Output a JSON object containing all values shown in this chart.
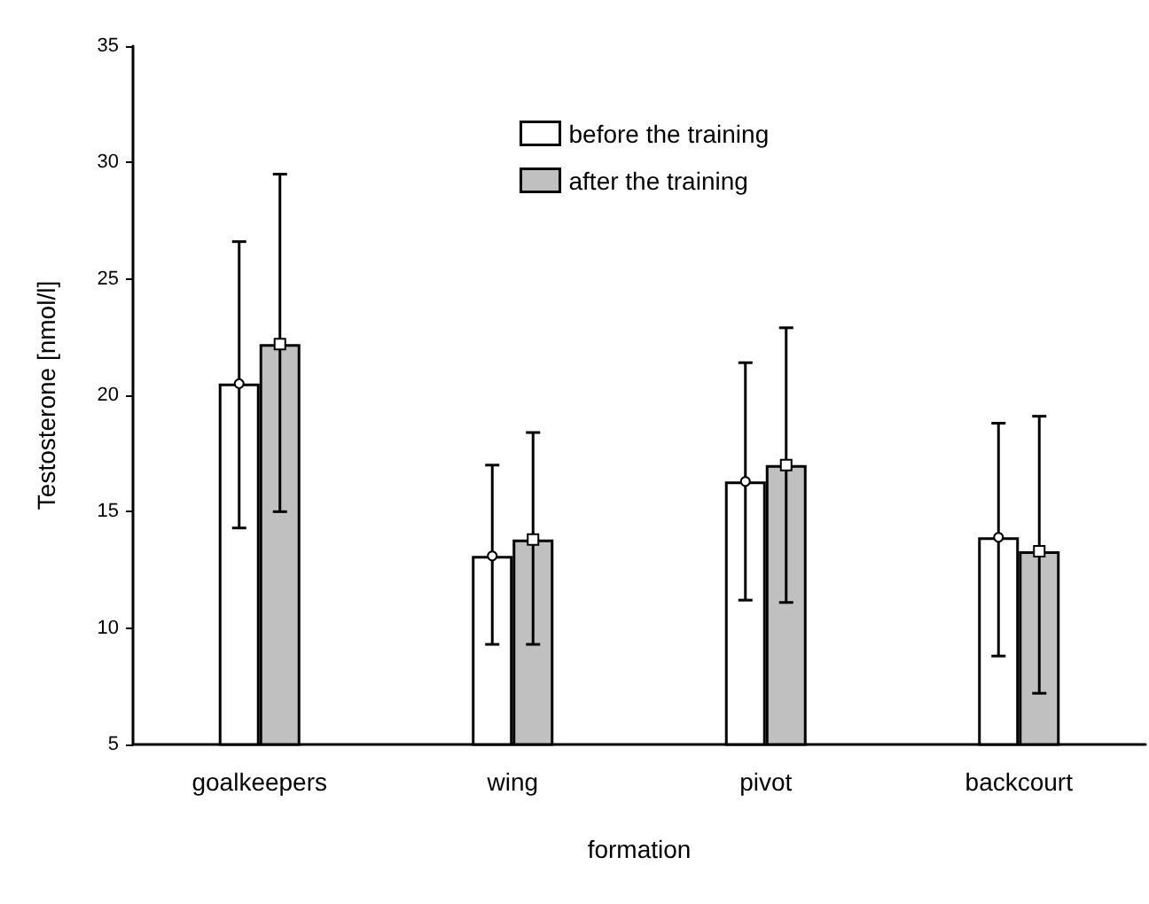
{
  "chart_data": {
    "type": "bar",
    "xlabel": "formation",
    "ylabel": "Testosterone [nmol/l]",
    "categories": [
      "goalkeepers",
      "wing",
      "pivot",
      "backcourt"
    ],
    "series": [
      {
        "name": "before the training",
        "color": "#ffffff",
        "values": [
          20.5,
          13.1,
          16.3,
          13.9
        ],
        "errors": [
          [
            14.3,
            26.6
          ],
          [
            9.3,
            17.0
          ],
          [
            11.2,
            21.4
          ],
          [
            8.8,
            18.8
          ]
        ]
      },
      {
        "name": "after the training",
        "color": "#c0c0c0",
        "values": [
          22.2,
          13.8,
          17.0,
          13.3
        ],
        "errors": [
          [
            15.0,
            29.5
          ],
          [
            9.3,
            18.4
          ],
          [
            11.1,
            22.9
          ],
          [
            7.2,
            19.1
          ]
        ]
      },
      {
        "type": "scatter",
        "color": "#ffffff",
        "marker": "circle",
        "x": [
          "goalkeepers",
          "wing",
          "pivot",
          "backcourt"
        ],
        "values": [
          20.5,
          13.1,
          16.3,
          13.9
        ]
      },
      {
        "type": "scatter",
        "color": "#ffffff",
        "marker": "square",
        "x": [
          "goalkeepers",
          "wing",
          "pivot",
          "backcourt"
        ],
        "values": [
          22.2,
          13.8,
          17.0,
          13.3
        ]
      }
    ],
    "ylim": [
      5,
      35
    ],
    "yticks": [
      5,
      10,
      15,
      20,
      25,
      30,
      35
    ],
    "grid": false,
    "legend": "top right"
  }
}
